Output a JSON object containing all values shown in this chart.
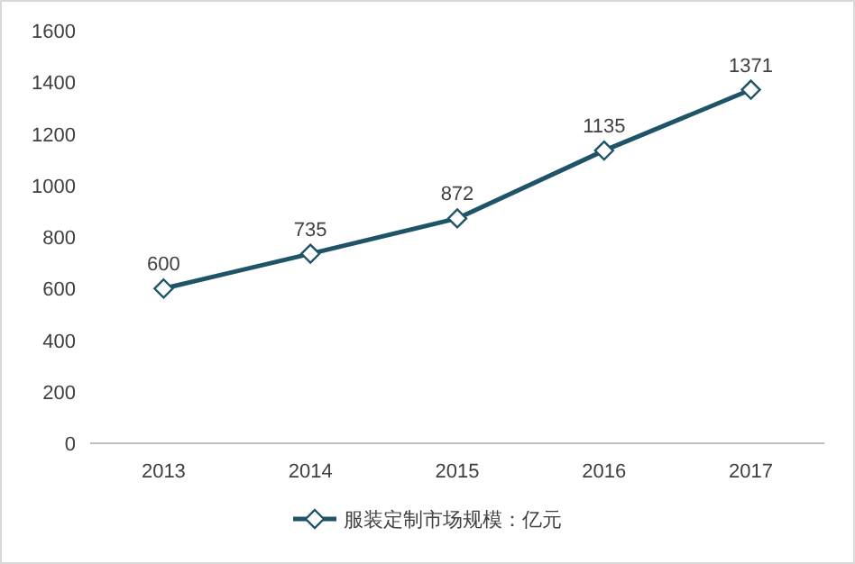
{
  "chart_data": {
    "type": "line",
    "categories": [
      "2013",
      "2014",
      "2015",
      "2016",
      "2017"
    ],
    "series": [
      {
        "name": "服装定制市场规模：亿元",
        "color": "#1f5468",
        "values": [
          600,
          735,
          872,
          1135,
          1371
        ]
      }
    ],
    "ylim": [
      0,
      1600
    ],
    "yticks": [
      0,
      200,
      400,
      600,
      800,
      1000,
      1200,
      1400,
      1600
    ],
    "marker": "diamond",
    "data_labels": true,
    "legend": "bottom"
  }
}
